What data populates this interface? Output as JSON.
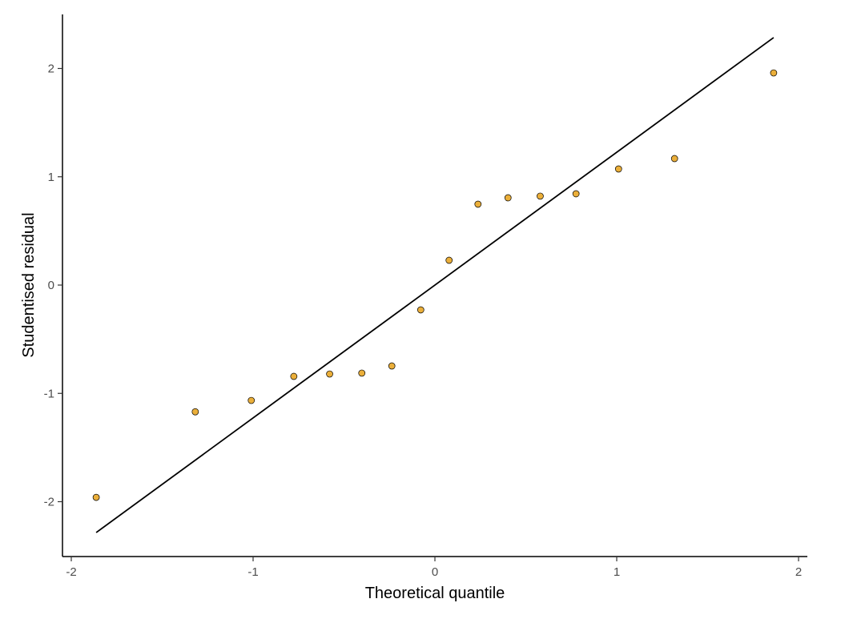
{
  "chart_data": {
    "type": "scatter",
    "title": "",
    "xlabel": "Theoretical quantile",
    "ylabel": "Studentised residual",
    "xlim": [
      -2.05,
      2.05
    ],
    "ylim": [
      -2.5,
      2.5
    ],
    "x_ticks": [
      -2,
      -1,
      0,
      1,
      2
    ],
    "x_tick_labels": [
      "-2",
      "-1",
      "0",
      "1",
      "2"
    ],
    "y_ticks": [
      -2,
      -1,
      0,
      1,
      2
    ],
    "y_tick_labels": [
      "-2",
      "-1",
      "0",
      "1",
      "2"
    ],
    "grid": false,
    "point_fill": "#EBAF3A",
    "point_stroke": "#000000",
    "line_color": "#000000",
    "points": {
      "x": [
        -1.863,
        -1.318,
        -1.01,
        -0.776,
        -0.579,
        -0.402,
        -0.237,
        -0.078,
        0.078,
        0.237,
        0.402,
        0.579,
        0.776,
        1.01,
        1.318,
        1.863
      ],
      "y": [
        -1.96,
        -1.17,
        -1.065,
        -0.843,
        -0.821,
        -0.813,
        -0.747,
        -0.229,
        0.229,
        0.747,
        0.806,
        0.821,
        0.843,
        1.072,
        1.168,
        1.959
      ]
    },
    "reference_line": {
      "x": [
        -1.863,
        1.863
      ],
      "y": [
        -2.285,
        2.285
      ]
    }
  }
}
